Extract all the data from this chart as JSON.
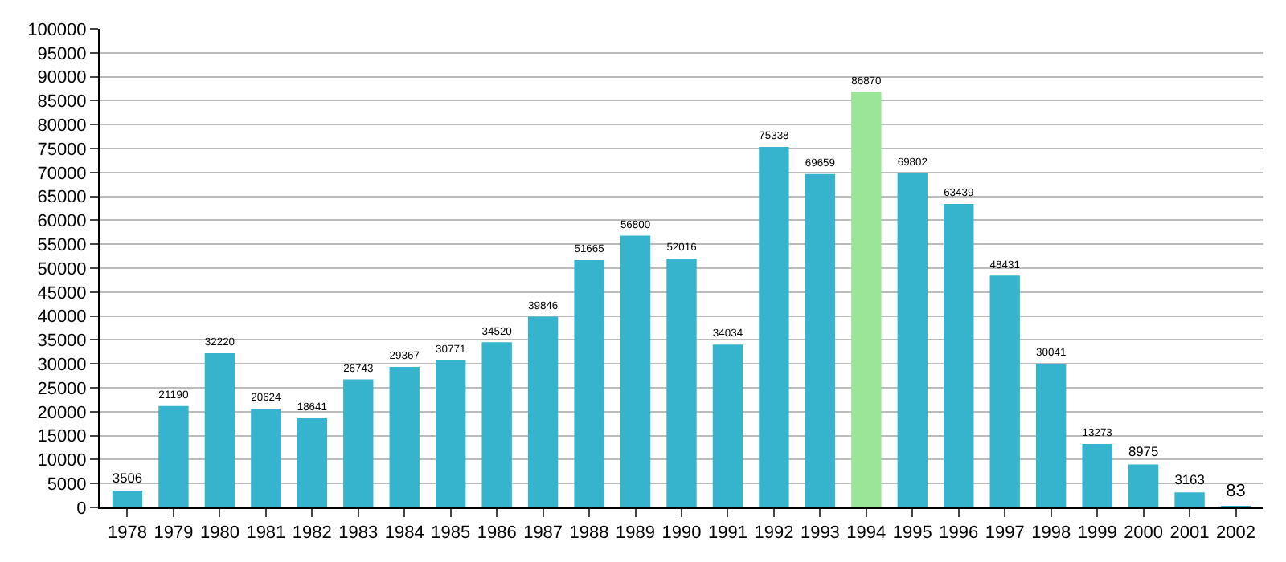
{
  "chart_data": {
    "type": "bar",
    "categories": [
      "1978",
      "1979",
      "1980",
      "1981",
      "1982",
      "1983",
      "1984",
      "1985",
      "1986",
      "1987",
      "1988",
      "1989",
      "1990",
      "1991",
      "1992",
      "1993",
      "1994",
      "1995",
      "1996",
      "1997",
      "1998",
      "1999",
      "2000",
      "2001",
      "2002"
    ],
    "values": [
      3506,
      21190,
      32220,
      20624,
      18641,
      26743,
      29367,
      30771,
      34520,
      39846,
      51665,
      56800,
      52016,
      34034,
      75338,
      69659,
      86870,
      69802,
      63439,
      48431,
      30041,
      13273,
      8975,
      3163,
      83
    ],
    "colors": [
      "#36b4cd",
      "#36b4cd",
      "#36b4cd",
      "#36b4cd",
      "#36b4cd",
      "#36b4cd",
      "#36b4cd",
      "#36b4cd",
      "#36b4cd",
      "#36b4cd",
      "#36b4cd",
      "#36b4cd",
      "#36b4cd",
      "#36b4cd",
      "#36b4cd",
      "#36b4cd",
      "#99e699",
      "#36b4cd",
      "#36b4cd",
      "#36b4cd",
      "#36b4cd",
      "#36b4cd",
      "#36b4cd",
      "#36b4cd",
      "#36b4cd"
    ],
    "ylim": [
      0,
      100000
    ],
    "yticks": [
      0,
      5000,
      10000,
      15000,
      20000,
      25000,
      30000,
      35000,
      40000,
      45000,
      50000,
      55000,
      60000,
      65000,
      70000,
      75000,
      80000,
      85000,
      90000,
      95000,
      100000
    ],
    "grid": "y",
    "data_labels": true
  }
}
